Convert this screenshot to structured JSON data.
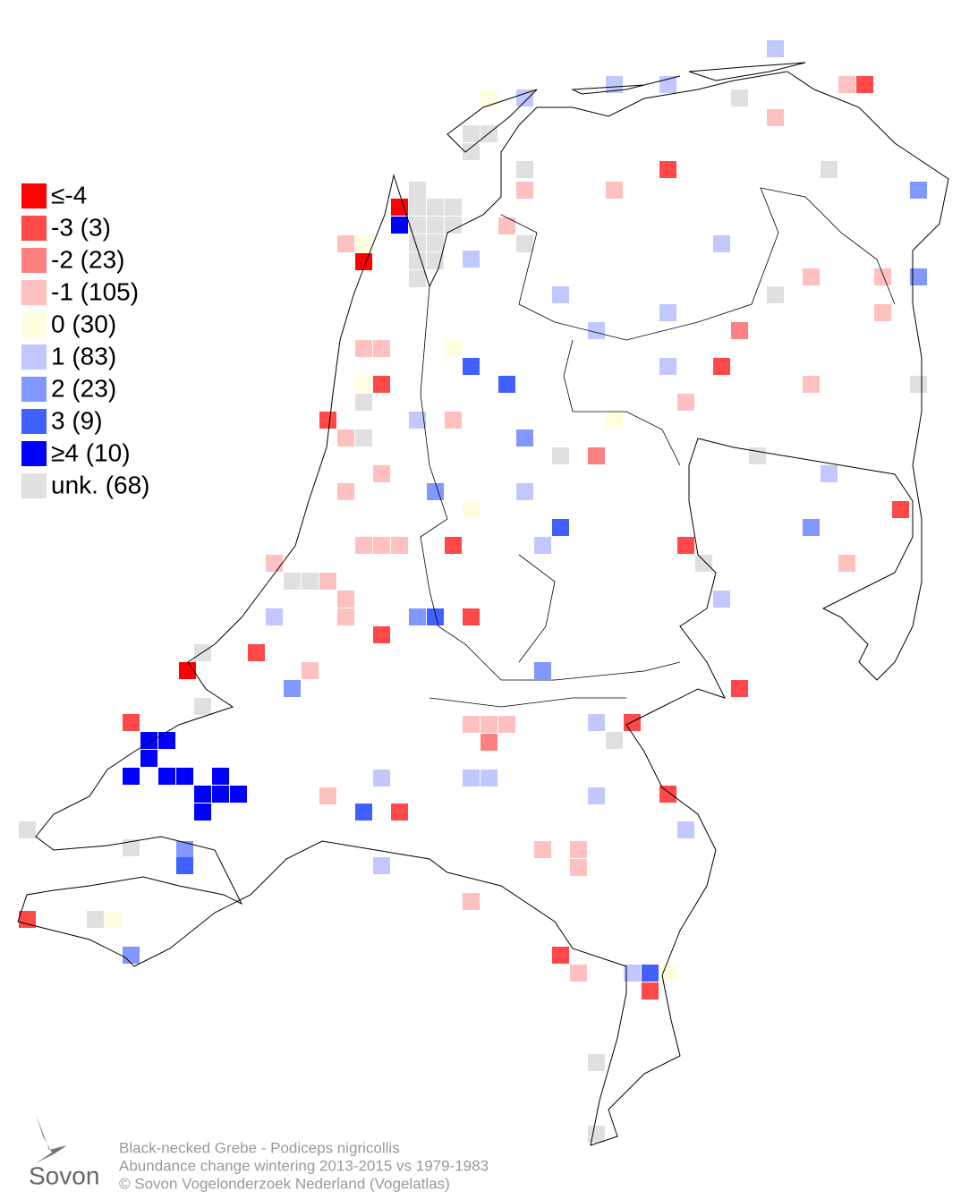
{
  "legend": {
    "items": [
      {
        "label": "≤-4",
        "color": "#ff0000"
      },
      {
        "label": "-3 (3)",
        "color": "#ff4848"
      },
      {
        "label": "-2 (23)",
        "color": "#ff8080"
      },
      {
        "label": "-1 (105)",
        "color": "#ffc0c0"
      },
      {
        "label": " 0 (30)",
        "color": "#ffffe0"
      },
      {
        "label": " 1 (83)",
        "color": "#c0c8ff"
      },
      {
        "label": " 2 (23)",
        "color": "#8098ff"
      },
      {
        "label": " 3 (9)",
        "color": "#4060ff"
      },
      {
        "label": "≥4 (10)",
        "color": "#0000ff"
      },
      {
        "label": "unk. (68)",
        "color": "#e0e0e0"
      }
    ]
  },
  "caption": {
    "lines": [
      "Black-necked Grebe - Podiceps nigricollis",
      "Abundance change wintering  2013-2015 vs 1979-1983",
      "© Sovon Vogelonderzoek Nederland (Vogelatlas)"
    ]
  },
  "logo": {
    "text": "Sovon"
  }
}
